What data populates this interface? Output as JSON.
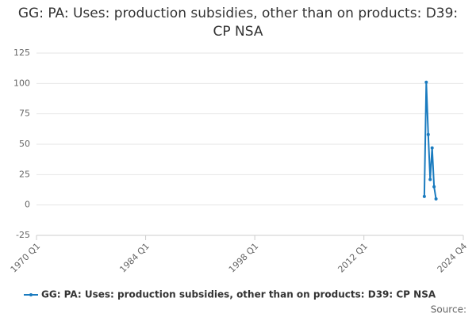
{
  "chart_data": {
    "type": "line",
    "title": "GG: PA: Uses: production subsidies, other than on products: D39: CP NSA",
    "x": [
      "2019 Q4",
      "2020 Q1",
      "2020 Q2",
      "2020 Q3",
      "2020 Q4",
      "2021 Q1",
      "2021 Q2"
    ],
    "series": [
      {
        "name": "GG: PA: Uses: production subsidies, other than on products: D39: CP NSA",
        "color": "#1a7bbf",
        "values": [
          7,
          101,
          58,
          21,
          47,
          15,
          5
        ]
      }
    ],
    "xlim": [
      "1970 Q1",
      "2024 Q4"
    ],
    "xticks": [
      "1970 Q1",
      "1984 Q1",
      "1998 Q1",
      "2012 Q1",
      "2024 Q4"
    ],
    "ylim": [
      -25,
      125
    ],
    "yticks": [
      -25,
      0,
      25,
      50,
      75,
      100,
      125
    ],
    "grid": true,
    "legend": "bottom",
    "source": "Source:"
  }
}
